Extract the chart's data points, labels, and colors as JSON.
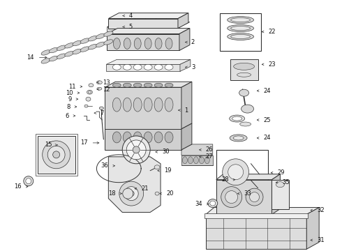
{
  "bg_color": "#ffffff",
  "fig_width": 4.9,
  "fig_height": 3.6,
  "dpi": 100,
  "line_color": "#333333",
  "light_gray": "#cccccc",
  "mid_gray": "#999999",
  "dark_gray": "#666666",
  "label_fontsize": 6,
  "label_color": "#111111"
}
